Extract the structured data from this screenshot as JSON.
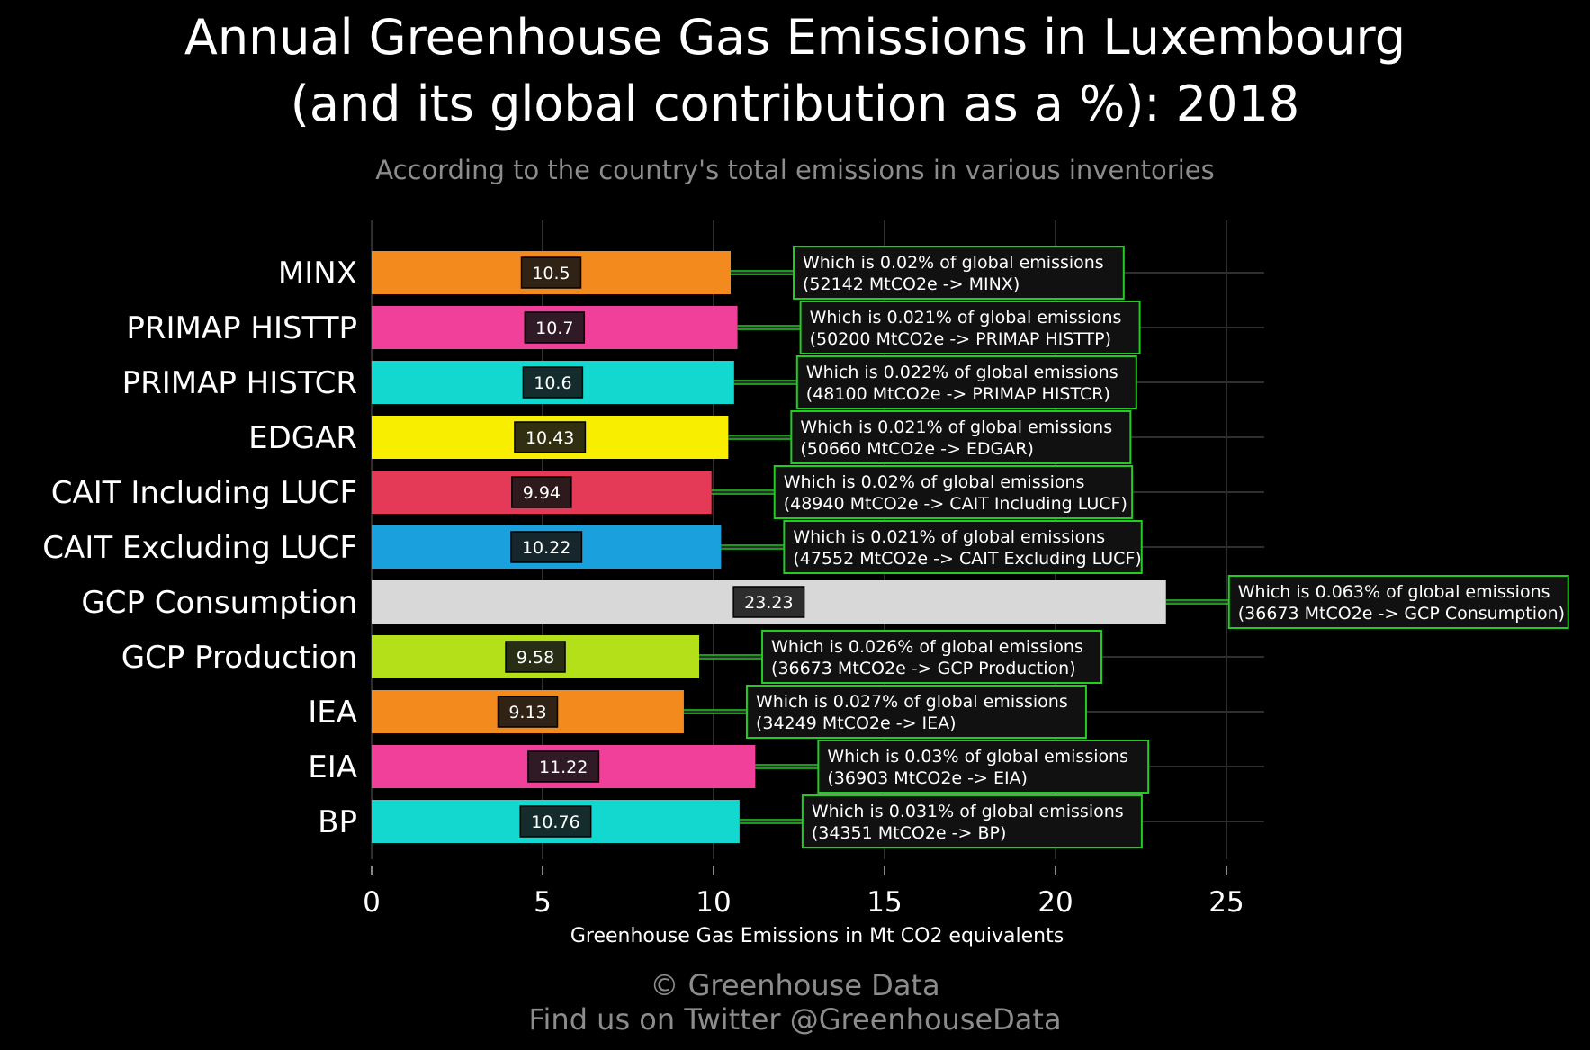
{
  "header": {
    "title_line1": "Annual Greenhouse Gas Emissions in Luxembourg",
    "title_line2": "(and its global contribution as a %): 2018",
    "subtitle": "According to the country's total emissions in various inventories"
  },
  "footer": {
    "copyright": "© Greenhouse Data",
    "twitter": "Find us on Twitter @GreenhouseData"
  },
  "chart_data": {
    "type": "bar",
    "orientation": "horizontal",
    "title": "Annual Greenhouse Gas Emissions in Luxembourg (and its global contribution as a %): 2018",
    "subtitle": "According to the country's total emissions in various inventories",
    "xlabel": "Greenhouse Gas Emissions in Mt CO2 equivalents",
    "ylabel": "",
    "xlim": [
      0,
      26
    ],
    "xticks": [
      0,
      5,
      10,
      15,
      20,
      25
    ],
    "grid": true,
    "categories": [
      "MINX",
      "PRIMAP HISTTP",
      "PRIMAP HISTCR",
      "EDGAR",
      "CAIT Including LUCF",
      "CAIT Excluding LUCF",
      "GCP Consumption",
      "GCP Production",
      "IEA",
      "EIA",
      "BP"
    ],
    "values": [
      10.5,
      10.7,
      10.6,
      10.43,
      9.94,
      10.22,
      23.23,
      9.58,
      9.13,
      11.22,
      10.76
    ],
    "value_labels": [
      "10.5",
      "10.7",
      "10.6",
      "10.43",
      "9.94",
      "10.22",
      "23.23",
      "9.58",
      "9.13",
      "11.22",
      "10.76"
    ],
    "colors": [
      "#f28a1e",
      "#f0409a",
      "#13d8d0",
      "#f8ee00",
      "#e43a58",
      "#1aa0dc",
      "#d8d8d8",
      "#b4e01a",
      "#f28a1e",
      "#f0409a",
      "#13d8d0"
    ],
    "annotations": [
      {
        "line1": "Which is 0.02% of global emissions",
        "line2": "(52142 MtCO2e -> MINX)"
      },
      {
        "line1": "Which is 0.021% of global emissions",
        "line2": "(50200 MtCO2e -> PRIMAP HISTTP)"
      },
      {
        "line1": "Which is 0.022% of global emissions",
        "line2": "(48100 MtCO2e -> PRIMAP HISTCR)"
      },
      {
        "line1": "Which is 0.021% of global emissions",
        "line2": "(50660 MtCO2e -> EDGAR)"
      },
      {
        "line1": "Which is 0.02% of global emissions",
        "line2": "(48940 MtCO2e -> CAIT Including LUCF)"
      },
      {
        "line1": "Which is 0.021% of global emissions",
        "line2": "(47552 MtCO2e -> CAIT Excluding LUCF)"
      },
      {
        "line1": "Which is 0.063% of global emissions",
        "line2": "(36673 MtCO2e -> GCP Consumption)"
      },
      {
        "line1": "Which is 0.026% of global emissions",
        "line2": "(36673 MtCO2e -> GCP Production)"
      },
      {
        "line1": "Which is 0.027% of global emissions",
        "line2": "(34249 MtCO2e -> IEA)"
      },
      {
        "line1": "Which is 0.03% of global emissions",
        "line2": "(36903 MtCO2e -> EIA)"
      },
      {
        "line1": "Which is 0.031% of global emissions",
        "line2": "(34351 MtCO2e -> BP)"
      }
    ],
    "annotation_border_color": "#22cc22",
    "gridline_color": "#2e2e2e"
  }
}
